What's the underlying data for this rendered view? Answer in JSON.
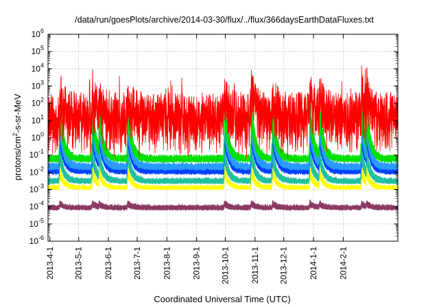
{
  "chart_data": {
    "type": "line",
    "title": "/data/run/goesPlots/archive/2014-03-30/flux/../flux/366daysEarthDataFluxes.txt",
    "xlabel": "Coordinated Universal Time (UTC)",
    "ylabel": {
      "pre": "protons/cm",
      "sup": "2",
      "post": "-s-sr-MeV"
    },
    "y_scale": "log",
    "ylim_exp": [
      -6,
      6
    ],
    "y_ticks": [
      {
        "base": "10",
        "exp": "-6"
      },
      {
        "base": "10",
        "exp": "-5"
      },
      {
        "base": "10",
        "exp": "-4"
      },
      {
        "base": "10",
        "exp": "-3"
      },
      {
        "base": "10",
        "exp": "-2"
      },
      {
        "base": "10",
        "exp": "-1"
      },
      {
        "base": "10",
        "exp": "0"
      },
      {
        "base": "10",
        "exp": "1"
      },
      {
        "base": "10",
        "exp": "2"
      },
      {
        "base": "10",
        "exp": "3"
      },
      {
        "base": "10",
        "exp": "4"
      },
      {
        "base": "10",
        "exp": "5"
      },
      {
        "base": "10",
        "exp": "6"
      }
    ],
    "xlim": [
      "2013-03-30",
      "2014-03-30"
    ],
    "x_ticks": [
      "2013-4-1",
      "2013-5-1",
      "2013-6-1",
      "2013-7-1",
      "2013-8-1",
      "2013-9-1",
      "2013-10-1",
      "2013-11-1",
      "2013-12-1",
      "2014-1-1",
      "2014-2-1"
    ],
    "grid": true,
    "event_dates": [
      "2013-04-11",
      "2013-05-15",
      "2013-05-22",
      "2013-06-21",
      "2013-09-30",
      "2013-10-28",
      "2013-11-19",
      "2013-12-28",
      "2014-01-07",
      "2014-02-20",
      "2014-02-25"
    ],
    "series": [
      {
        "color": "#8b3a62",
        "base_log": -4.0,
        "noise": 0.18,
        "spike": 0.3
      },
      {
        "color": "#ffff00",
        "base_log": -2.85,
        "noise": 0.15,
        "spike": 1.2
      },
      {
        "color": "#20c0a0",
        "base_log": -2.45,
        "noise": 0.2,
        "spike": 2.0
      },
      {
        "color": "#0040ff",
        "base_log": -1.85,
        "noise": 0.25,
        "spike": 3.0
      },
      {
        "color": "#2a9bff",
        "base_log": -1.6,
        "noise": 0.25,
        "spike": 3.2
      },
      {
        "color": "#00e000",
        "base_log": -1.15,
        "noise": 0.25,
        "spike": 3.5
      },
      {
        "color": "#ff0000",
        "base_log": 1.5,
        "noise": 1.2,
        "spike": 1.5
      }
    ]
  }
}
